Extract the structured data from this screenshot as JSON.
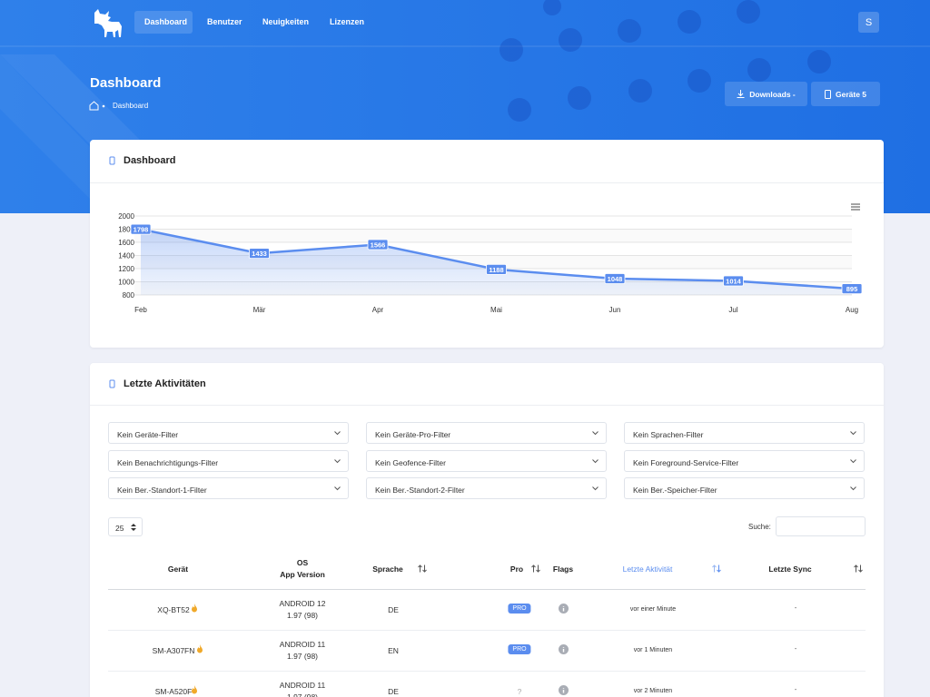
{
  "nav": {
    "items": [
      "Dashboard",
      "Benutzer",
      "Neuigkeiten",
      "Lizenzen"
    ],
    "avatar": "S"
  },
  "header": {
    "title": "Dashboard",
    "breadcrumb": "Dashboard",
    "buttons": [
      "Downloads -",
      "Geräte 5"
    ]
  },
  "chart_card": {
    "title": "Dashboard"
  },
  "chart_data": {
    "type": "line",
    "categories": [
      "Feb",
      "Mär",
      "Apr",
      "Mai",
      "Jun",
      "Jul",
      "Aug"
    ],
    "values": [
      1798,
      1433,
      1566,
      1188,
      1048,
      1014,
      895
    ],
    "color": "#5b8def",
    "ylim": [
      800,
      2000
    ],
    "yticks": [
      800,
      1000,
      1200,
      1400,
      1600,
      1800,
      2000
    ],
    "grid": true
  },
  "activity": {
    "title": "Letzte Aktivitäten",
    "filters": [
      "Kein Geräte-Filter",
      "Kein Geräte-Pro-Filter",
      "Kein Sprachen-Filter",
      "Kein Benachrichtigungs-Filter",
      "Kein Geofence-Filter",
      "Kein Foreground-Service-Filter",
      "Kein Ber.-Standort-1-Filter",
      "Kein Ber.-Standort-2-Filter",
      "Kein Ber.-Speicher-Filter"
    ],
    "page_length": "25",
    "search_label": "Suche:",
    "table": {
      "columns": [
        "Gerät",
        "OS",
        "App Version",
        "Sprache",
        "Pro",
        "Flags",
        "Letzte Aktivität",
        "Letzte Sync"
      ],
      "rows": [
        [
          "XQ-BT52",
          "ANDROID 12",
          "1.97 (98)",
          "DE",
          "PRO",
          "vor einer Minute",
          "-"
        ],
        [
          "SM-A307FN",
          "ANDROID 11",
          "1.97 (98)",
          "EN",
          "PRO",
          "vor 1 Minuten",
          "-"
        ],
        [
          "SM-A520F",
          "ANDROID 11",
          "1.97 (98)",
          "DE",
          "?",
          "vor 2 Minuten",
          "-"
        ]
      ]
    }
  }
}
